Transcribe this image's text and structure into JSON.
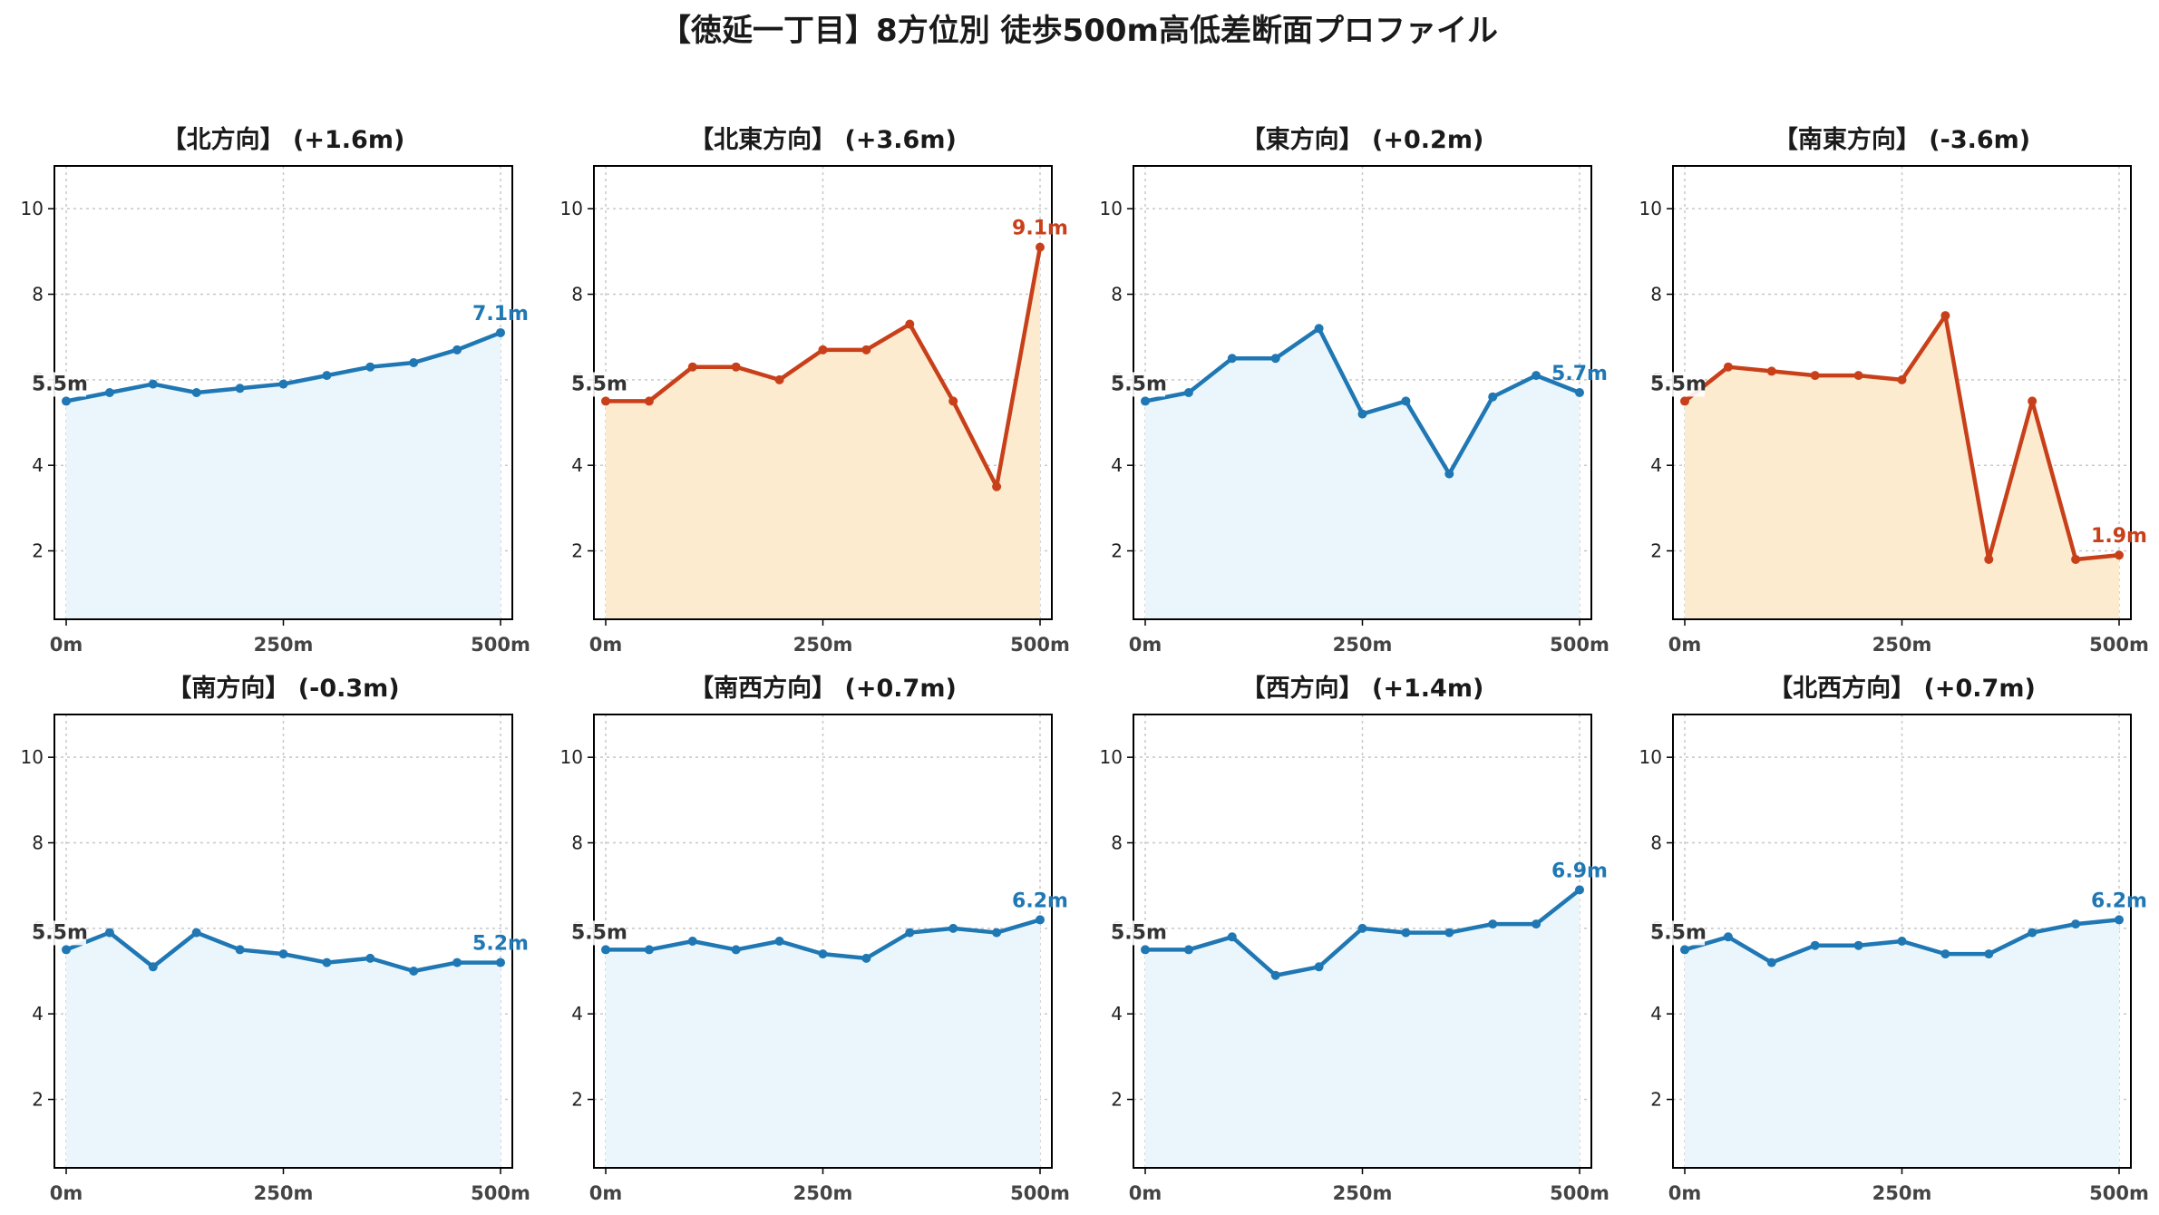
{
  "title": "【徳延一丁目】8方位別 徒歩500m高低差断面プロファイル",
  "colors": {
    "up": "#c8401a",
    "normal": "#1f77b4",
    "up_fill": "#fdebd0",
    "normal_fill": "#eaf6fb",
    "start_label": "#333333"
  },
  "chart_data": [
    {
      "type": "area",
      "title": "【北方向】 (+1.6m)",
      "start_label": "5.5m",
      "end_label": "7.1m",
      "highlight": false,
      "x": [
        0,
        50,
        100,
        150,
        200,
        250,
        300,
        350,
        400,
        450,
        500
      ],
      "values": [
        5.5,
        5.7,
        5.9,
        5.7,
        5.8,
        5.9,
        6.1,
        6.3,
        6.4,
        6.7,
        7.1
      ],
      "xticks": [
        "0m",
        "250m",
        "500m"
      ],
      "yticks": [
        2,
        4,
        6,
        8,
        10
      ],
      "ylim": [
        0.4,
        11.0
      ],
      "grid": true
    },
    {
      "type": "area",
      "title": "【北東方向】 (+3.6m)",
      "start_label": "5.5m",
      "end_label": "9.1m",
      "highlight": true,
      "x": [
        0,
        50,
        100,
        150,
        200,
        250,
        300,
        350,
        400,
        450,
        500
      ],
      "values": [
        5.5,
        5.5,
        6.3,
        6.3,
        6.0,
        6.7,
        6.7,
        7.3,
        5.5,
        3.5,
        9.1
      ],
      "xticks": [
        "0m",
        "250m",
        "500m"
      ],
      "yticks": [
        2,
        4,
        6,
        8,
        10
      ],
      "ylim": [
        0.4,
        11.0
      ],
      "grid": true
    },
    {
      "type": "area",
      "title": "【東方向】 (+0.2m)",
      "start_label": "5.5m",
      "end_label": "5.7m",
      "highlight": false,
      "x": [
        0,
        50,
        100,
        150,
        200,
        250,
        300,
        350,
        400,
        450,
        500
      ],
      "values": [
        5.5,
        5.7,
        6.5,
        6.5,
        7.2,
        5.2,
        5.5,
        3.8,
        5.6,
        6.1,
        5.7
      ],
      "xticks": [
        "0m",
        "250m",
        "500m"
      ],
      "yticks": [
        2,
        4,
        6,
        8,
        10
      ],
      "ylim": [
        0.4,
        11.0
      ],
      "grid": true
    },
    {
      "type": "area",
      "title": "【南東方向】 (-3.6m)",
      "start_label": "5.5m",
      "end_label": "1.9m",
      "highlight": true,
      "x": [
        0,
        50,
        100,
        150,
        200,
        250,
        300,
        350,
        400,
        450,
        500
      ],
      "values": [
        5.5,
        6.3,
        6.2,
        6.1,
        6.1,
        6.0,
        7.5,
        1.8,
        5.5,
        1.8,
        1.9
      ],
      "xticks": [
        "0m",
        "250m",
        "500m"
      ],
      "yticks": [
        2,
        4,
        6,
        8,
        10
      ],
      "ylim": [
        0.4,
        11.0
      ],
      "grid": true
    },
    {
      "type": "area",
      "title": "【南方向】 (-0.3m)",
      "start_label": "5.5m",
      "end_label": "5.2m",
      "highlight": false,
      "x": [
        0,
        50,
        100,
        150,
        200,
        250,
        300,
        350,
        400,
        450,
        500
      ],
      "values": [
        5.5,
        5.9,
        5.1,
        5.9,
        5.5,
        5.4,
        5.2,
        5.3,
        5.0,
        5.2,
        5.2
      ],
      "xticks": [
        "0m",
        "250m",
        "500m"
      ],
      "yticks": [
        2,
        4,
        6,
        8,
        10
      ],
      "ylim": [
        0.4,
        11.0
      ],
      "grid": true
    },
    {
      "type": "area",
      "title": "【南西方向】 (+0.7m)",
      "start_label": "5.5m",
      "end_label": "6.2m",
      "highlight": false,
      "x": [
        0,
        50,
        100,
        150,
        200,
        250,
        300,
        350,
        400,
        450,
        500
      ],
      "values": [
        5.5,
        5.5,
        5.7,
        5.5,
        5.7,
        5.4,
        5.3,
        5.9,
        6.0,
        5.9,
        6.2
      ],
      "xticks": [
        "0m",
        "250m",
        "500m"
      ],
      "yticks": [
        2,
        4,
        6,
        8,
        10
      ],
      "ylim": [
        0.4,
        11.0
      ],
      "grid": true
    },
    {
      "type": "area",
      "title": "【西方向】 (+1.4m)",
      "start_label": "5.5m",
      "end_label": "6.9m",
      "highlight": false,
      "x": [
        0,
        50,
        100,
        150,
        200,
        250,
        300,
        350,
        400,
        450,
        500
      ],
      "values": [
        5.5,
        5.5,
        5.8,
        4.9,
        5.1,
        6.0,
        5.9,
        5.9,
        6.1,
        6.1,
        6.9
      ],
      "xticks": [
        "0m",
        "250m",
        "500m"
      ],
      "yticks": [
        2,
        4,
        6,
        8,
        10
      ],
      "ylim": [
        0.4,
        11.0
      ],
      "grid": true
    },
    {
      "type": "area",
      "title": "【北西方向】 (+0.7m)",
      "start_label": "5.5m",
      "end_label": "6.2m",
      "highlight": false,
      "x": [
        0,
        50,
        100,
        150,
        200,
        250,
        300,
        350,
        400,
        450,
        500
      ],
      "values": [
        5.5,
        5.8,
        5.2,
        5.6,
        5.6,
        5.7,
        5.4,
        5.4,
        5.9,
        6.1,
        6.2
      ],
      "xticks": [
        "0m",
        "250m",
        "500m"
      ],
      "yticks": [
        2,
        4,
        6,
        8,
        10
      ],
      "ylim": [
        0.4,
        11.0
      ],
      "grid": true
    }
  ]
}
